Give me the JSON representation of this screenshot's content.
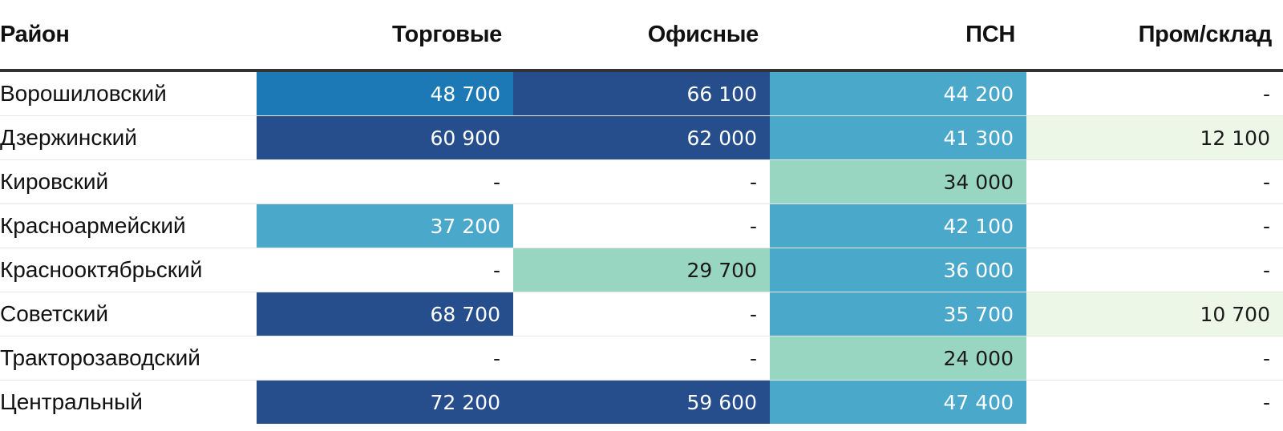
{
  "chart_data": {
    "type": "table",
    "columns": [
      "Район",
      "Торговые",
      "Офисные",
      "ПСН",
      "Пром/склад"
    ],
    "rows": [
      {
        "district": "Ворошиловский",
        "values": [
          "48 700",
          "66 100",
          "44 200",
          "-"
        ]
      },
      {
        "district": "Дзержинский",
        "values": [
          "60 900",
          "62 000",
          "41 300",
          "12 100"
        ]
      },
      {
        "district": "Кировский",
        "values": [
          "-",
          "-",
          "34 000",
          "-"
        ]
      },
      {
        "district": "Красноармейский",
        "values": [
          "37 200",
          "-",
          "42 100",
          "-"
        ]
      },
      {
        "district": "Краснооктябрьский",
        "values": [
          "-",
          "29 700",
          "36 000",
          "-"
        ]
      },
      {
        "district": "Советский",
        "values": [
          "68 700",
          "-",
          "35 700",
          "10 700"
        ]
      },
      {
        "district": "Тракторозаводский",
        "values": [
          "-",
          "-",
          "24 000",
          "-"
        ]
      },
      {
        "district": "Центральный",
        "values": [
          "72 200",
          "59 600",
          "47 400",
          "-"
        ]
      }
    ],
    "color_scale": [
      {
        "max": 15000,
        "bg": "#edf7e7",
        "fg": "#1a1a1a"
      },
      {
        "max": 35000,
        "bg": "#99d6c2",
        "fg": "#1a1a1a"
      },
      {
        "max": 47500,
        "bg": "#4aa8cb",
        "fg": "#ffffff"
      },
      {
        "max": 55000,
        "bg": "#1d78b6",
        "fg": "#ffffff"
      },
      {
        "max": 1000000,
        "bg": "#264e8c",
        "fg": "#ffffff"
      }
    ]
  }
}
